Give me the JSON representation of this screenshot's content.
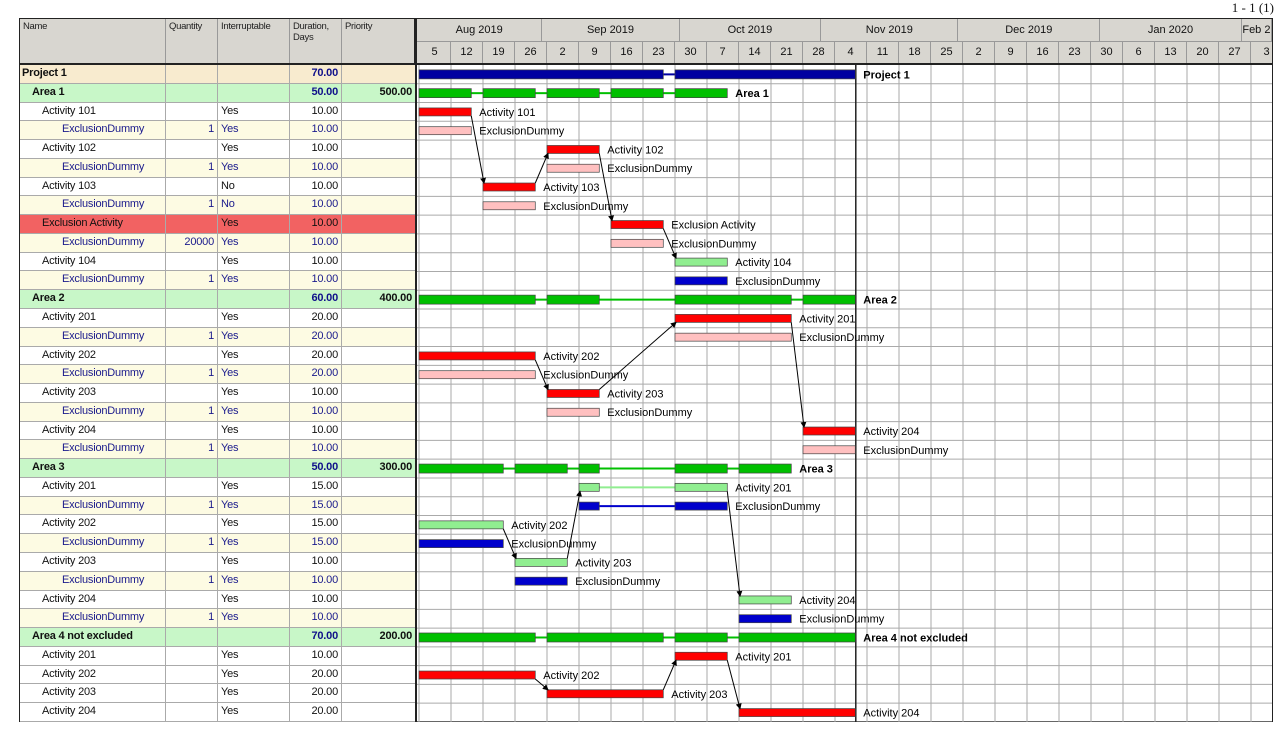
{
  "pager": "1 - 1 (1)",
  "columns": {
    "name": "Name",
    "quantity": "Quantity",
    "interruptable": "Interruptable",
    "duration": "Duration, Days",
    "priority": "Priority"
  },
  "timeline": {
    "first_week": "2019-08-05",
    "months": [
      {
        "label": "Aug 2019",
        "start": "2019-08-01"
      },
      {
        "label": "Sep 2019",
        "start": "2019-09-01"
      },
      {
        "label": "Oct 2019",
        "start": "2019-10-01"
      },
      {
        "label": "Nov 2019",
        "start": "2019-11-01"
      },
      {
        "label": "Dec 2019",
        "start": "2019-12-01"
      },
      {
        "label": "Jan 2020",
        "start": "2020-01-01"
      },
      {
        "label": "Feb 2",
        "start": "2020-02-01"
      }
    ],
    "weeks": [
      "5",
      "12",
      "19",
      "26",
      "2",
      "9",
      "16",
      "23",
      "30",
      "7",
      "14",
      "21",
      "28",
      "4",
      "11",
      "18",
      "25",
      "2",
      "9",
      "16",
      "23",
      "30",
      "6",
      "13",
      "20",
      "27",
      "3"
    ],
    "project_end_marker": "2019-11-08"
  },
  "colors": {
    "red": "#ff0000",
    "pink": "#ffc0c0",
    "lightgreen": "#90ee90",
    "blue": "#0000cc",
    "green": "#00c000",
    "navy": "#0000a0"
  },
  "rows": [
    {
      "type": "project",
      "name": "Project 1",
      "quantity": "",
      "interruptable": "",
      "duration": "70.00",
      "priority": "",
      "color": "navy",
      "bars": [
        [
          "2019-08-05",
          "2019-09-27"
        ],
        [
          "2019-09-30",
          "2019-11-08"
        ]
      ],
      "label": "Project 1"
    },
    {
      "type": "area",
      "name": "Area 1",
      "quantity": "",
      "interruptable": "",
      "duration": "50.00",
      "priority": "500.00",
      "color": "green",
      "bars": [
        [
          "2019-08-05",
          "2019-08-16"
        ],
        [
          "2019-08-19",
          "2019-08-30"
        ],
        [
          "2019-09-02",
          "2019-09-13"
        ],
        [
          "2019-09-16",
          "2019-09-27"
        ],
        [
          "2019-09-30",
          "2019-10-11"
        ]
      ],
      "label": "Area 1"
    },
    {
      "type": "activity",
      "name": "Activity 101",
      "quantity": "",
      "interruptable": "Yes",
      "duration": "10.00",
      "priority": "",
      "color": "red",
      "bars": [
        [
          "2019-08-05",
          "2019-08-16"
        ]
      ],
      "label": "Activity 101"
    },
    {
      "type": "dummy",
      "name": "ExclusionDummy",
      "quantity": "1",
      "interruptable": "Yes",
      "duration": "10.00",
      "priority": "",
      "color": "pink",
      "bars": [
        [
          "2019-08-05",
          "2019-08-16"
        ]
      ],
      "label": "ExclusionDummy"
    },
    {
      "type": "activity",
      "name": "Activity 102",
      "quantity": "",
      "interruptable": "Yes",
      "duration": "10.00",
      "priority": "",
      "color": "red",
      "bars": [
        [
          "2019-09-02",
          "2019-09-13"
        ]
      ],
      "label": "Activity 102",
      "pred": 6
    },
    {
      "type": "dummy",
      "name": "ExclusionDummy",
      "quantity": "1",
      "interruptable": "Yes",
      "duration": "10.00",
      "priority": "",
      "color": "pink",
      "bars": [
        [
          "2019-09-02",
          "2019-09-13"
        ]
      ],
      "label": "ExclusionDummy"
    },
    {
      "type": "activity",
      "name": "Activity 103",
      "quantity": "",
      "interruptable": "No",
      "duration": "10.00",
      "priority": "",
      "color": "red",
      "bars": [
        [
          "2019-08-19",
          "2019-08-30"
        ]
      ],
      "label": "Activity 103",
      "pred": 2
    },
    {
      "type": "dummy",
      "name": "ExclusionDummy",
      "quantity": "1",
      "interruptable": "No",
      "duration": "10.00",
      "priority": "",
      "color": "pink",
      "bars": [
        [
          "2019-08-19",
          "2019-08-30"
        ]
      ],
      "label": "ExclusionDummy"
    },
    {
      "type": "exclusion",
      "name": "Exclusion Activity",
      "quantity": "",
      "interruptable": "Yes",
      "duration": "10.00",
      "priority": "",
      "color": "red",
      "bars": [
        [
          "2019-09-16",
          "2019-09-27"
        ]
      ],
      "label": "Exclusion Activity",
      "pred": 4
    },
    {
      "type": "dummy",
      "name": "ExclusionDummy",
      "quantity": "20000",
      "interruptable": "Yes",
      "duration": "10.00",
      "priority": "",
      "color": "pink",
      "bars": [
        [
          "2019-09-16",
          "2019-09-27"
        ]
      ],
      "label": "ExclusionDummy"
    },
    {
      "type": "activity",
      "name": "Activity 104",
      "quantity": "",
      "interruptable": "Yes",
      "duration": "10.00",
      "priority": "",
      "color": "lightgreen",
      "bars": [
        [
          "2019-09-30",
          "2019-10-11"
        ]
      ],
      "label": "Activity 104",
      "pred": 8
    },
    {
      "type": "dummy",
      "name": "ExclusionDummy",
      "quantity": "1",
      "interruptable": "Yes",
      "duration": "10.00",
      "priority": "",
      "color": "blue",
      "bars": [
        [
          "2019-09-30",
          "2019-10-11"
        ]
      ],
      "label": "ExclusionDummy"
    },
    {
      "type": "area",
      "name": "Area 2",
      "quantity": "",
      "interruptable": "",
      "duration": "60.00",
      "priority": "400.00",
      "color": "green",
      "bars": [
        [
          "2019-08-05",
          "2019-08-30"
        ],
        [
          "2019-09-02",
          "2019-09-13"
        ],
        [
          "2019-09-30",
          "2019-10-25"
        ],
        [
          "2019-10-28",
          "2019-11-08"
        ]
      ],
      "label": "Area 2"
    },
    {
      "type": "activity",
      "name": "Activity 201",
      "quantity": "",
      "interruptable": "Yes",
      "duration": "20.00",
      "priority": "",
      "color": "red",
      "bars": [
        [
          "2019-09-30",
          "2019-10-25"
        ]
      ],
      "label": "Activity 201",
      "pred": 17
    },
    {
      "type": "dummy",
      "name": "ExclusionDummy",
      "quantity": "1",
      "interruptable": "Yes",
      "duration": "20.00",
      "priority": "",
      "color": "pink",
      "bars": [
        [
          "2019-09-30",
          "2019-10-25"
        ]
      ],
      "label": "ExclusionDummy"
    },
    {
      "type": "activity",
      "name": "Activity 202",
      "quantity": "",
      "interruptable": "Yes",
      "duration": "20.00",
      "priority": "",
      "color": "red",
      "bars": [
        [
          "2019-08-05",
          "2019-08-30"
        ]
      ],
      "label": "Activity 202"
    },
    {
      "type": "dummy",
      "name": "ExclusionDummy",
      "quantity": "1",
      "interruptable": "Yes",
      "duration": "20.00",
      "priority": "",
      "color": "pink",
      "bars": [
        [
          "2019-08-05",
          "2019-08-30"
        ]
      ],
      "label": "ExclusionDummy"
    },
    {
      "type": "activity",
      "name": "Activity 203",
      "quantity": "",
      "interruptable": "Yes",
      "duration": "10.00",
      "priority": "",
      "color": "red",
      "bars": [
        [
          "2019-09-02",
          "2019-09-13"
        ]
      ],
      "label": "Activity 203",
      "pred": 15
    },
    {
      "type": "dummy",
      "name": "ExclusionDummy",
      "quantity": "1",
      "interruptable": "Yes",
      "duration": "10.00",
      "priority": "",
      "color": "pink",
      "bars": [
        [
          "2019-09-02",
          "2019-09-13"
        ]
      ],
      "label": "ExclusionDummy"
    },
    {
      "type": "activity",
      "name": "Activity 204",
      "quantity": "",
      "interruptable": "Yes",
      "duration": "10.00",
      "priority": "",
      "color": "red",
      "bars": [
        [
          "2019-10-28",
          "2019-11-08"
        ]
      ],
      "label": "Activity 204",
      "pred": 13
    },
    {
      "type": "dummy",
      "name": "ExclusionDummy",
      "quantity": "1",
      "interruptable": "Yes",
      "duration": "10.00",
      "priority": "",
      "color": "pink",
      "bars": [
        [
          "2019-10-28",
          "2019-11-08"
        ]
      ],
      "label": "ExclusionDummy"
    },
    {
      "type": "area",
      "name": "Area 3",
      "quantity": "",
      "interruptable": "",
      "duration": "50.00",
      "priority": "300.00",
      "color": "green",
      "bars": [
        [
          "2019-08-05",
          "2019-08-23"
        ],
        [
          "2019-08-26",
          "2019-09-06"
        ],
        [
          "2019-09-09",
          "2019-09-13"
        ],
        [
          "2019-09-30",
          "2019-10-11"
        ],
        [
          "2019-10-14",
          "2019-10-25"
        ]
      ],
      "label": "Area 3"
    },
    {
      "type": "activity",
      "name": "Activity 201",
      "quantity": "",
      "interruptable": "Yes",
      "duration": "15.00",
      "priority": "",
      "color": "lightgreen",
      "bars": [
        [
          "2019-09-09",
          "2019-09-13"
        ],
        [
          "2019-09-30",
          "2019-10-11"
        ]
      ],
      "label": "Activity 201",
      "pred": 26
    },
    {
      "type": "dummy",
      "name": "ExclusionDummy",
      "quantity": "1",
      "interruptable": "Yes",
      "duration": "15.00",
      "priority": "",
      "color": "blue",
      "bars": [
        [
          "2019-09-09",
          "2019-09-13"
        ],
        [
          "2019-09-30",
          "2019-10-11"
        ]
      ],
      "label": "ExclusionDummy"
    },
    {
      "type": "activity",
      "name": "Activity 202",
      "quantity": "",
      "interruptable": "Yes",
      "duration": "15.00",
      "priority": "",
      "color": "lightgreen",
      "bars": [
        [
          "2019-08-05",
          "2019-08-23"
        ]
      ],
      "label": "Activity 202"
    },
    {
      "type": "dummy",
      "name": "ExclusionDummy",
      "quantity": "1",
      "interruptable": "Yes",
      "duration": "15.00",
      "priority": "",
      "color": "blue",
      "bars": [
        [
          "2019-08-05",
          "2019-08-23"
        ]
      ],
      "label": "ExclusionDummy"
    },
    {
      "type": "activity",
      "name": "Activity 203",
      "quantity": "",
      "interruptable": "Yes",
      "duration": "10.00",
      "priority": "",
      "color": "lightgreen",
      "bars": [
        [
          "2019-08-26",
          "2019-09-06"
        ]
      ],
      "label": "Activity 203",
      "pred": 24
    },
    {
      "type": "dummy",
      "name": "ExclusionDummy",
      "quantity": "1",
      "interruptable": "Yes",
      "duration": "10.00",
      "priority": "",
      "color": "blue",
      "bars": [
        [
          "2019-08-26",
          "2019-09-06"
        ]
      ],
      "label": "ExclusionDummy"
    },
    {
      "type": "activity",
      "name": "Activity 204",
      "quantity": "",
      "interruptable": "Yes",
      "duration": "10.00",
      "priority": "",
      "color": "lightgreen",
      "bars": [
        [
          "2019-10-14",
          "2019-10-25"
        ]
      ],
      "label": "Activity 204",
      "pred": 22
    },
    {
      "type": "dummy",
      "name": "ExclusionDummy",
      "quantity": "1",
      "interruptable": "Yes",
      "duration": "10.00",
      "priority": "",
      "color": "blue",
      "bars": [
        [
          "2019-10-14",
          "2019-10-25"
        ]
      ],
      "label": "ExclusionDummy"
    },
    {
      "type": "area",
      "name": "Area 4 not excluded",
      "quantity": "",
      "interruptable": "",
      "duration": "70.00",
      "priority": "200.00",
      "color": "green",
      "bars": [
        [
          "2019-08-05",
          "2019-08-30"
        ],
        [
          "2019-09-02",
          "2019-09-27"
        ],
        [
          "2019-09-30",
          "2019-10-11"
        ],
        [
          "2019-10-14",
          "2019-11-08"
        ]
      ],
      "label": "Area 4 not excluded"
    },
    {
      "type": "activity",
      "name": "Activity 201",
      "quantity": "",
      "interruptable": "Yes",
      "duration": "10.00",
      "priority": "",
      "color": "red",
      "bars": [
        [
          "2019-09-30",
          "2019-10-11"
        ]
      ],
      "label": "Activity 201",
      "pred": 33
    },
    {
      "type": "activity",
      "name": "Activity 202",
      "quantity": "",
      "interruptable": "Yes",
      "duration": "20.00",
      "priority": "",
      "color": "red",
      "bars": [
        [
          "2019-08-05",
          "2019-08-30"
        ]
      ],
      "label": "Activity 202"
    },
    {
      "type": "activity",
      "name": "Activity 203",
      "quantity": "",
      "interruptable": "Yes",
      "duration": "20.00",
      "priority": "",
      "color": "red",
      "bars": [
        [
          "2019-09-02",
          "2019-09-27"
        ]
      ],
      "label": "Activity 203",
      "pred": 32
    },
    {
      "type": "activity",
      "name": "Activity 204",
      "quantity": "",
      "interruptable": "Yes",
      "duration": "20.00",
      "priority": "",
      "color": "red",
      "bars": [
        [
          "2019-10-14",
          "2019-11-08"
        ]
      ],
      "label": "Activity 204",
      "pred": 31
    }
  ]
}
